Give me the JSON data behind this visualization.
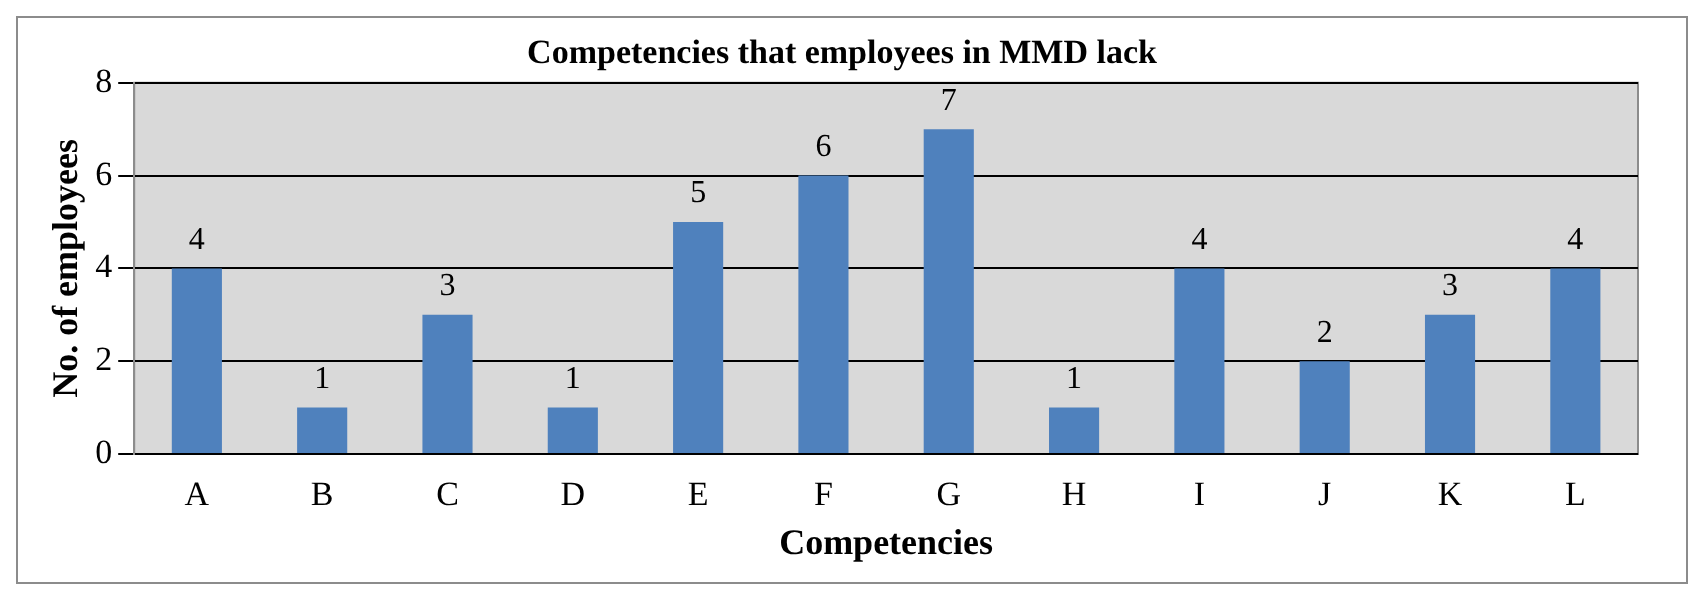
{
  "chart_data": {
    "type": "bar",
    "title": "Competencies that employees in MMD lack",
    "xlabel": "Competencies",
    "ylabel": "No. of employees",
    "categories": [
      "A",
      "B",
      "C",
      "D",
      "E",
      "F",
      "G",
      "H",
      "I",
      "J",
      "K",
      "L"
    ],
    "values": [
      4,
      1,
      3,
      1,
      5,
      6,
      7,
      1,
      4,
      2,
      3,
      4
    ],
    "color": "#4f81bd",
    "ylim": [
      0,
      8
    ],
    "yticks": [
      0,
      2,
      4,
      6,
      8
    ],
    "grid": "y",
    "data_labels": true,
    "legend": false
  }
}
